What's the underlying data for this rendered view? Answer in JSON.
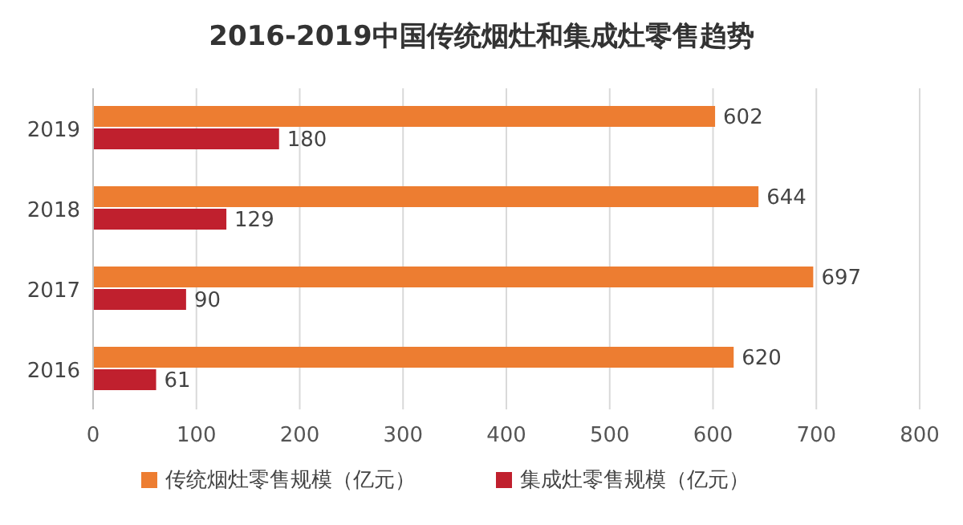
{
  "chart_data": {
    "type": "bar",
    "orientation": "horizontal",
    "title": "2016-2019中国传统烟灶和集成灶零售趋势",
    "categories": [
      "2019",
      "2018",
      "2017",
      "2016"
    ],
    "series": [
      {
        "name": "传统烟灶零售规模（亿元）",
        "color": "#ed7d31",
        "values": [
          602,
          644,
          697,
          620
        ]
      },
      {
        "name": "集成灶零售规模（亿元）",
        "color": "#c0202e",
        "values": [
          180,
          129,
          90,
          61
        ]
      }
    ],
    "xlim": [
      0,
      800
    ],
    "xticks": [
      0,
      100,
      200,
      300,
      400,
      500,
      600,
      700,
      800
    ],
    "grid": "x",
    "legend": "bottom",
    "data_labels": true
  }
}
